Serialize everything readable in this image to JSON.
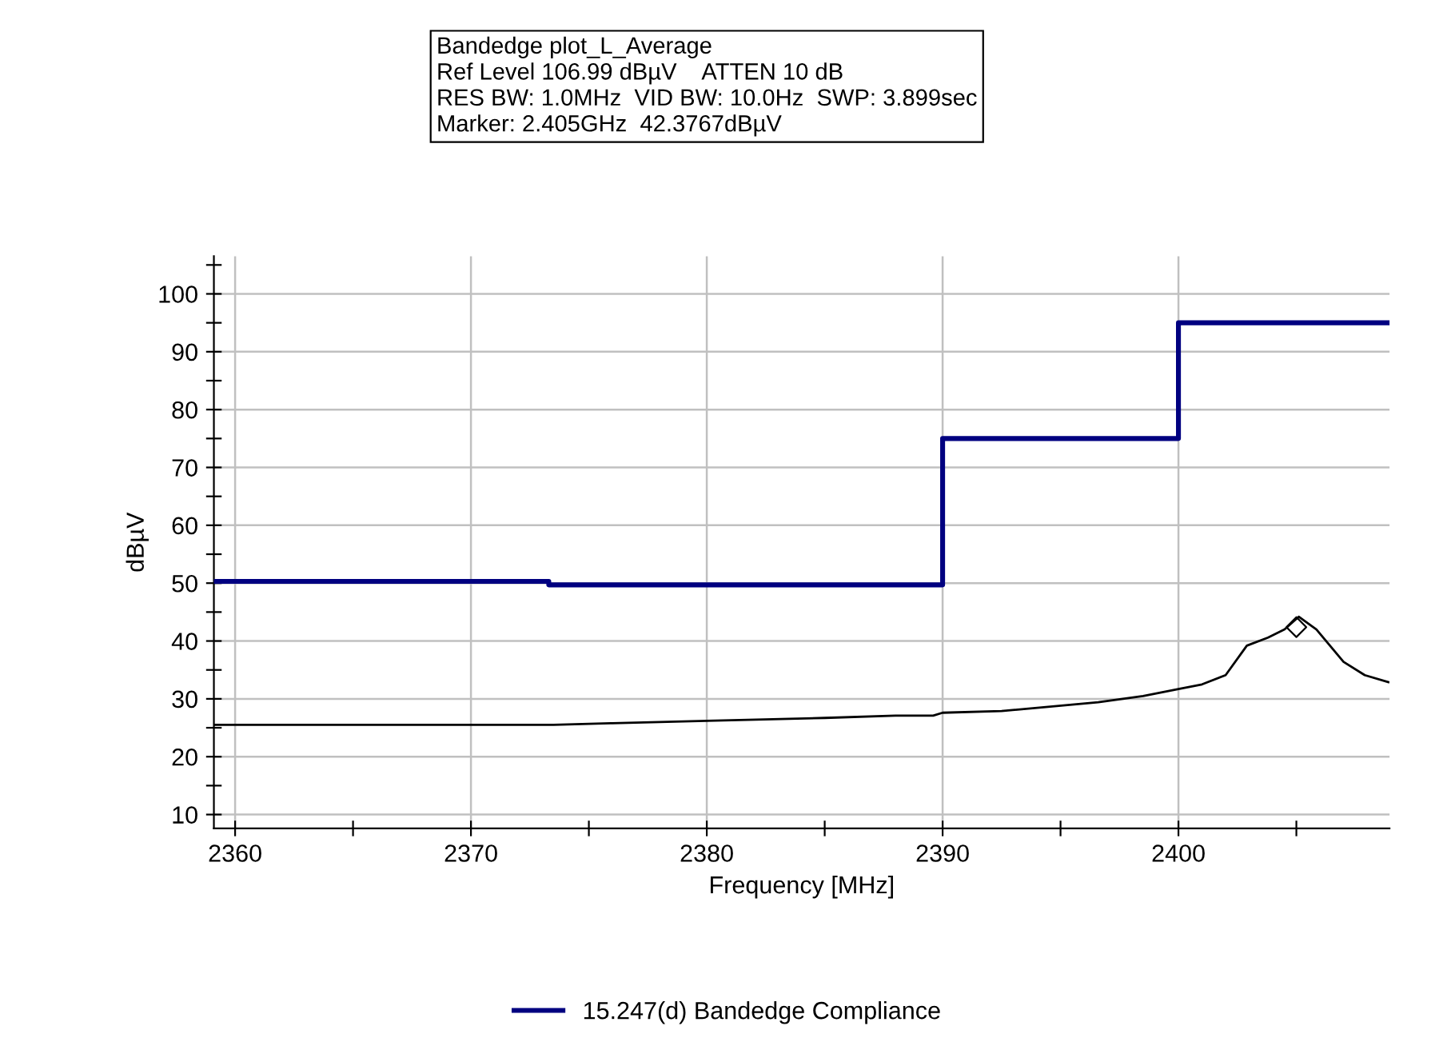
{
  "chart_data": {
    "type": "line",
    "xlabel": "Frequency [MHz]",
    "ylabel": "dBµV",
    "annotations": [
      "Bandedge plot_L_Average",
      "Ref Level 106.99 dBµV    ATTEN 10 dB",
      "RES BW: 1.0MHz  VID BW: 10.0Hz  SWP: 3.899sec",
      "Marker: 2.405GHz  42.3767dBµV"
    ],
    "xlim": [
      2359.1,
      2408.95
    ],
    "ylim": [
      7.6,
      106.5
    ],
    "xticks": [
      2360,
      {
        "value": 2365,
        "label": null
      },
      2370,
      {
        "value": 2375,
        "label": null
      },
      2380,
      {
        "value": 2385,
        "label": null
      },
      2390,
      {
        "value": 2395,
        "label": null
      },
      2400,
      {
        "value": 2405,
        "label": null
      }
    ],
    "yticks": [
      10,
      {
        "value": 15,
        "label": null
      },
      20,
      {
        "value": 25,
        "label": null
      },
      30,
      {
        "value": 35,
        "label": null
      },
      40,
      {
        "value": 45,
        "label": null
      },
      50,
      {
        "value": 55,
        "label": null
      },
      60,
      {
        "value": 65,
        "label": null
      },
      70,
      {
        "value": 75,
        "label": null
      },
      80,
      {
        "value": 85,
        "label": null
      },
      90,
      {
        "value": 95,
        "label": null
      },
      100,
      {
        "value": 105,
        "label": null
      }
    ],
    "grid": true,
    "legend": "bottom",
    "series": [
      {
        "name": "15.247(d) Bandedge Compliance",
        "type": "step",
        "color": "#000080",
        "x": [
          2359.1,
          2373.3,
          2373.3,
          2390,
          2390,
          2400,
          2400,
          2408.95
        ],
        "values": [
          50.3,
          50.3,
          49.7,
          49.7,
          75,
          75,
          95,
          95
        ]
      },
      {
        "color": "#000000",
        "x": [
          2359.1,
          2373.5,
          2376,
          2380,
          2385,
          2388,
          2389.6,
          2390,
          2392.5,
          2396.6,
          2398.5,
          2400,
          2401,
          2402,
          2402.9,
          2403.8,
          2404.5,
          2405.1,
          2405.85,
          2407,
          2407.9,
          2408.9
        ],
        "values": [
          25.5,
          25.5,
          25.8,
          26.2,
          26.7,
          27.1,
          27.1,
          27.6,
          27.9,
          29.4,
          30.5,
          31.7,
          32.5,
          34.1,
          39.2,
          40.6,
          42.0,
          44.2,
          42.0,
          36.4,
          34.1,
          32.9
        ]
      },
      {
        "type": "scatter",
        "color": "#000000",
        "marker": "diamond",
        "x": [
          2405
        ],
        "values": [
          42.4
        ]
      }
    ]
  }
}
